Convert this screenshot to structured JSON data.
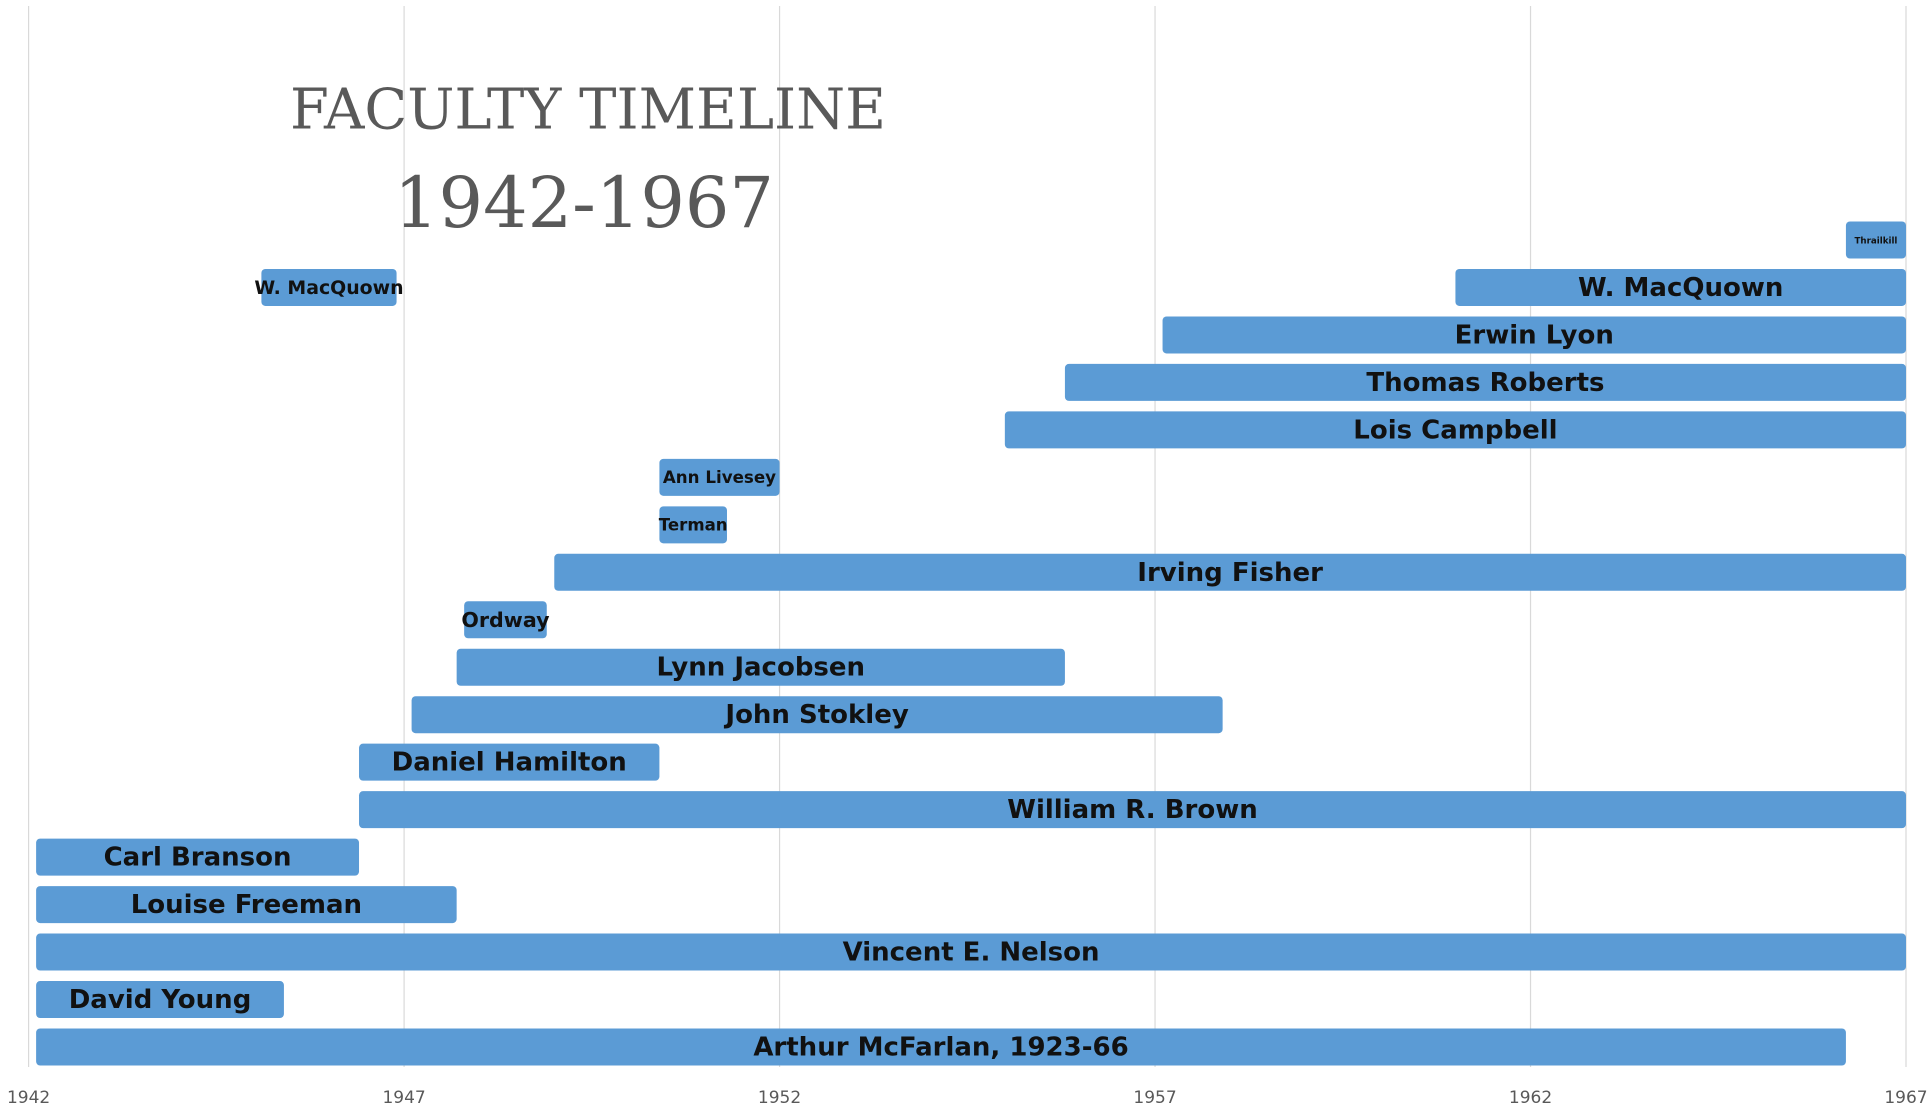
{
  "chart_data": {
    "type": "timeline",
    "title": "FACULTY TIMELINE",
    "subtitle": "1942-1967",
    "color": "#5b9bd5",
    "grid": true,
    "xlim": [
      1942,
      1967
    ],
    "xticks": [
      1942,
      1947,
      1952,
      1957,
      1962,
      1967
    ],
    "rows": [
      [
        {
          "name": "Thrailkill",
          "start": 1966.2,
          "end": 1967
        }
      ],
      [
        {
          "name": "W. MacQuown",
          "start": 1945.1,
          "end": 1946.9
        },
        {
          "name": "W. MacQuown",
          "start": 1961.0,
          "end": 1967
        }
      ],
      [
        {
          "name": "Erwin Lyon",
          "start": 1957.1,
          "end": 1967
        }
      ],
      [
        {
          "name": "Thomas Roberts",
          "start": 1955.8,
          "end": 1967
        }
      ],
      [
        {
          "name": "Lois Campbell",
          "start": 1955.0,
          "end": 1967
        }
      ],
      [
        {
          "name": "Ann Livesey",
          "start": 1950.4,
          "end": 1952.0
        }
      ],
      [
        {
          "name": "Terman",
          "start": 1950.4,
          "end": 1951.3
        }
      ],
      [
        {
          "name": "Irving Fisher",
          "start": 1949.0,
          "end": 1967
        }
      ],
      [
        {
          "name": "Ordway",
          "start": 1947.8,
          "end": 1948.9
        }
      ],
      [
        {
          "name": "Lynn Jacobsen",
          "start": 1947.7,
          "end": 1955.8
        }
      ],
      [
        {
          "name": "John Stokley",
          "start": 1947.1,
          "end": 1957.9
        }
      ],
      [
        {
          "name": "Daniel Hamilton",
          "start": 1946.4,
          "end": 1950.4
        }
      ],
      [
        {
          "name": "William R. Brown",
          "start": 1946.4,
          "end": 1967
        }
      ],
      [
        {
          "name": "Carl Branson",
          "start": 1942.1,
          "end": 1946.4
        }
      ],
      [
        {
          "name": "Louise Freeman",
          "start": 1942.1,
          "end": 1947.7
        }
      ],
      [
        {
          "name": "Vincent E. Nelson",
          "start": 1942.1,
          "end": 1967
        }
      ],
      [
        {
          "name": "David Young",
          "start": 1942.1,
          "end": 1945.4
        }
      ],
      [
        {
          "name": "Arthur McFarlan, 1923-66",
          "start": 1942.1,
          "end": 1966.2
        }
      ]
    ]
  }
}
